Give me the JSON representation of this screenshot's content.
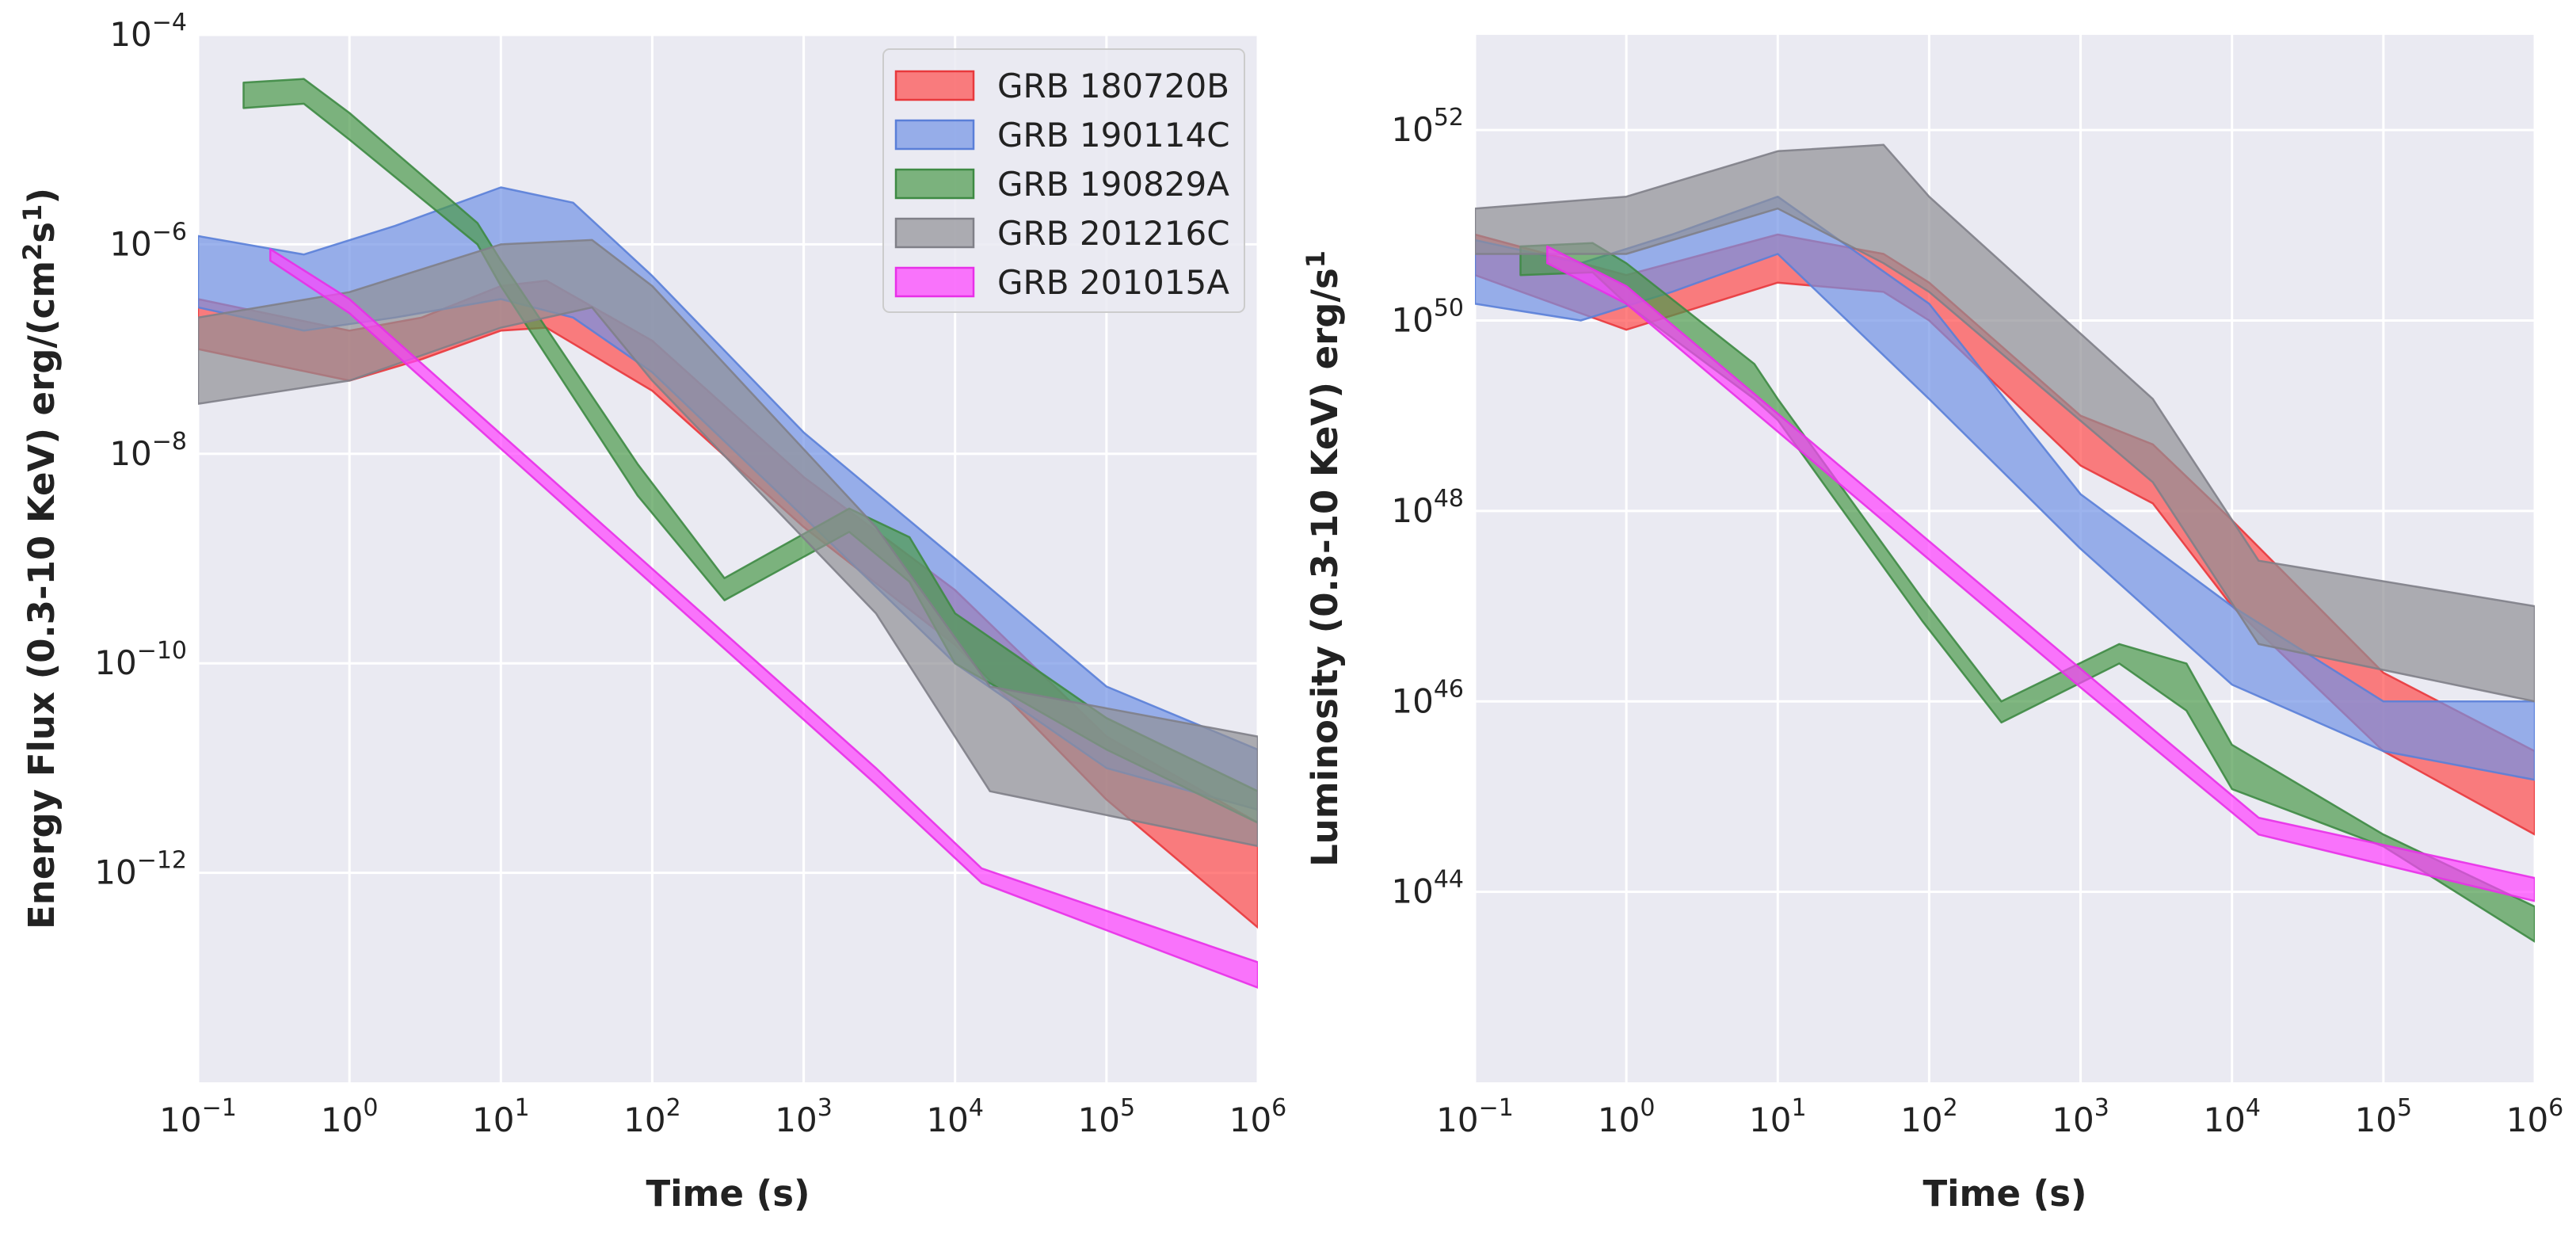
{
  "chart_data": [
    {
      "type": "area",
      "panel": "left",
      "xscale": "log",
      "yscale": "log",
      "xlim": [
        0.1,
        1000000
      ],
      "ylim": [
        1e-14,
        0.0001
      ],
      "xlabel": "Time (s)",
      "ylabel": "Energy Flux (0.3-10 KeV) erg/(cm²s¹)",
      "ylabel_parts": [
        "Energy Flux (0.3-10 KeV) erg/(cm",
        "2",
        "s",
        "1",
        ")"
      ],
      "x_ticks": [
        {
          "base": "10",
          "exp": "−1",
          "value": 0.1
        },
        {
          "base": "10",
          "exp": "0",
          "value": 1
        },
        {
          "base": "10",
          "exp": "1",
          "value": 10
        },
        {
          "base": "10",
          "exp": "2",
          "value": 100
        },
        {
          "base": "10",
          "exp": "3",
          "value": 1000
        },
        {
          "base": "10",
          "exp": "4",
          "value": 10000
        },
        {
          "base": "10",
          "exp": "5",
          "value": 100000
        },
        {
          "base": "10",
          "exp": "6",
          "value": 1000000
        }
      ],
      "y_ticks": [
        {
          "base": "10",
          "exp": "−4",
          "value": 0.0001
        },
        {
          "base": "10",
          "exp": "−6",
          "value": 1e-06
        },
        {
          "base": "10",
          "exp": "−8",
          "value": 1e-08
        },
        {
          "base": "10",
          "exp": "−10",
          "value": 1e-10
        },
        {
          "base": "10",
          "exp": "−12",
          "value": 1e-12
        }
      ],
      "legend": {
        "placement": "top-right"
      },
      "series": [
        {
          "name": "GRB 180720B",
          "color": "#ff4c4c",
          "edge": "#e8393d",
          "x": [
            0.1,
            1,
            3,
            10,
            20,
            100,
            1000,
            10000,
            100000,
            1000000
          ],
          "lower": [
            1e-07,
            5e-08,
            8e-08,
            1.5e-07,
            1.6e-07,
            4e-08,
            2e-09,
            1.5e-10,
            5e-12,
            3e-13
          ],
          "upper": [
            3e-07,
            1.5e-07,
            2e-07,
            4e-07,
            4.5e-07,
            1.2e-07,
            6e-09,
            5e-10,
            2e-11,
            3e-12
          ]
        },
        {
          "name": "GRB 190114C",
          "color": "#7293e6",
          "edge": "#5a7fd8",
          "x": [
            0.1,
            0.5,
            2,
            10,
            30,
            100,
            1000,
            10000,
            100000,
            1000000
          ],
          "lower": [
            2.5e-07,
            1.5e-07,
            2e-07,
            3e-07,
            2e-07,
            6e-08,
            2.5e-09,
            1e-10,
            1e-11,
            4e-12
          ],
          "upper": [
            1.2e-06,
            8e-07,
            1.5e-06,
            3.5e-06,
            2.5e-06,
            5e-07,
            1.6e-08,
            1e-09,
            6e-11,
            1.5e-11
          ]
        },
        {
          "name": "GRB 190829A",
          "color": "#4c9a4c",
          "edge": "#3e8a44",
          "x": [
            0.2,
            0.5,
            1,
            7,
            10,
            80,
            300,
            2000,
            5000,
            10000,
            100000,
            1000000
          ],
          "lower": [
            2e-05,
            2.2e-05,
            1e-05,
            1e-06,
            4e-07,
            4e-09,
            4e-10,
            1.8e-09,
            6e-10,
            1e-10,
            1.5e-11,
            3e-12
          ],
          "upper": [
            3.5e-05,
            3.8e-05,
            1.8e-05,
            1.6e-06,
            7e-07,
            8e-09,
            6.5e-10,
            3e-09,
            1.6e-09,
            3e-10,
            3e-11,
            6e-12
          ]
        },
        {
          "name": "GRB 201216C",
          "color": "#909096",
          "edge": "#808088",
          "x": [
            0.1,
            1,
            10,
            40,
            100,
            3000,
            17000,
            1000000
          ],
          "lower": [
            3e-08,
            5e-08,
            1.6e-07,
            2.5e-07,
            5e-08,
            3e-10,
            6e-12,
            1.8e-12
          ],
          "upper": [
            2e-07,
            3.5e-07,
            1e-06,
            1.1e-06,
            4e-07,
            2e-09,
            6e-11,
            2e-11
          ]
        },
        {
          "name": "GRB 201015A",
          "color": "#ff40ff",
          "edge": "#e830e8",
          "x": [
            0.3,
            1,
            3000,
            15000,
            1000000
          ],
          "lower": [
            7e-07,
            2.2e-07,
            7e-12,
            8e-13,
            8e-14
          ],
          "upper": [
            9e-07,
            3e-07,
            1e-11,
            1.1e-12,
            1.4e-13
          ]
        }
      ]
    },
    {
      "type": "area",
      "panel": "right",
      "xscale": "log",
      "yscale": "log",
      "xlim": [
        0.1,
        1000000
      ],
      "ylim": [
        1e+42,
        1e+53
      ],
      "xlabel": "Time (s)",
      "ylabel": "Luminosity (0.3-10 KeV) erg/s¹",
      "ylabel_parts": [
        "Luminosity (0.3-10 KeV) erg/s",
        "1"
      ],
      "x_ticks": [
        {
          "base": "10",
          "exp": "−1",
          "value": 0.1
        },
        {
          "base": "10",
          "exp": "0",
          "value": 1
        },
        {
          "base": "10",
          "exp": "1",
          "value": 10
        },
        {
          "base": "10",
          "exp": "2",
          "value": 100
        },
        {
          "base": "10",
          "exp": "3",
          "value": 1000
        },
        {
          "base": "10",
          "exp": "4",
          "value": 10000
        },
        {
          "base": "10",
          "exp": "5",
          "value": 100000
        },
        {
          "base": "10",
          "exp": "6",
          "value": 1000000
        }
      ],
      "y_ticks": [
        {
          "base": "10",
          "exp": "52",
          "value": 1e+52
        },
        {
          "base": "10",
          "exp": "50",
          "value": 1e+50
        },
        {
          "base": "10",
          "exp": "48",
          "value": 1e+48
        },
        {
          "base": "10",
          "exp": "46",
          "value": 1e+46
        },
        {
          "base": "10",
          "exp": "44",
          "value": 1e+44
        }
      ],
      "series": [
        {
          "name": "GRB 180720B",
          "color": "#ff4c4c",
          "edge": "#e8393d",
          "x": [
            0.1,
            1,
            10,
            50,
            100,
            1000,
            3000,
            10000,
            100000,
            1000000
          ],
          "lower": [
            3e+50,
            8e+49,
            2.5e+50,
            2e+50,
            1e+50,
            3e+48,
            1.2e+48,
            1e+47,
            3e+45,
            4e+44
          ],
          "upper": [
            8e+50,
            3e+50,
            8e+50,
            5e+50,
            2.5e+50,
            1e+49,
            5e+48,
            8e+47,
            2e+46,
            3e+45
          ]
        },
        {
          "name": "GRB 190114C",
          "color": "#7293e6",
          "edge": "#5a7fd8",
          "x": [
            0.1,
            0.5,
            2,
            10,
            100,
            1000,
            10000,
            100000,
            1000000
          ],
          "lower": [
            1.5e+50,
            1e+50,
            2e+50,
            5e+50,
            1.5e+49,
            4e+47,
            1.5e+46,
            3e+45,
            1.5e+45
          ],
          "upper": [
            7e+50,
            4e+50,
            8e+50,
            2e+51,
            1.5e+50,
            1.5e+48,
            1e+47,
            1e+46,
            1e+46
          ]
        },
        {
          "name": "GRB 190829A",
          "color": "#4c9a4c",
          "edge": "#3e8a44",
          "x": [
            0.2,
            0.6,
            1,
            7,
            10,
            90,
            300,
            1800,
            5000,
            10000,
            100000,
            1000000
          ],
          "lower": [
            3e+50,
            3.2e+50,
            1.5e+50,
            1.5e+49,
            9e+48,
            7e+46,
            6e+45,
            2.5e+46,
            8e+45,
            1.2e+45,
            3e+44,
            3e+43
          ],
          "upper": [
            6e+50,
            6.5e+50,
            4e+50,
            3.5e+49,
            1.5e+49,
            1.2e+47,
            1e+46,
            4e+46,
            2.5e+46,
            3.5e+45,
            4e+44,
            7e+43
          ]
        },
        {
          "name": "GRB 201216C",
          "color": "#909096",
          "edge": "#808088",
          "x": [
            0.1,
            1,
            10,
            50,
            100,
            3000,
            15000,
            1000000
          ],
          "lower": [
            5e+50,
            5e+50,
            1.5e+51,
            4e+50,
            2e+50,
            2e+48,
            4e+46,
            1e+46
          ],
          "upper": [
            1.5e+51,
            2e+51,
            6e+51,
            7e+51,
            2e+51,
            1.5e+49,
            3e+47,
            1e+47
          ]
        },
        {
          "name": "GRB 201015A",
          "color": "#ff40ff",
          "edge": "#e830e8",
          "x": [
            0.3,
            1,
            1000,
            15000,
            1000000
          ],
          "lower": [
            4e+50,
            1.5e+50,
            1.4e+46,
            4e+44,
            8e+43
          ],
          "upper": [
            6e+50,
            2.3e+50,
            2.2e+46,
            6e+44,
            1.4e+44
          ]
        }
      ]
    }
  ]
}
